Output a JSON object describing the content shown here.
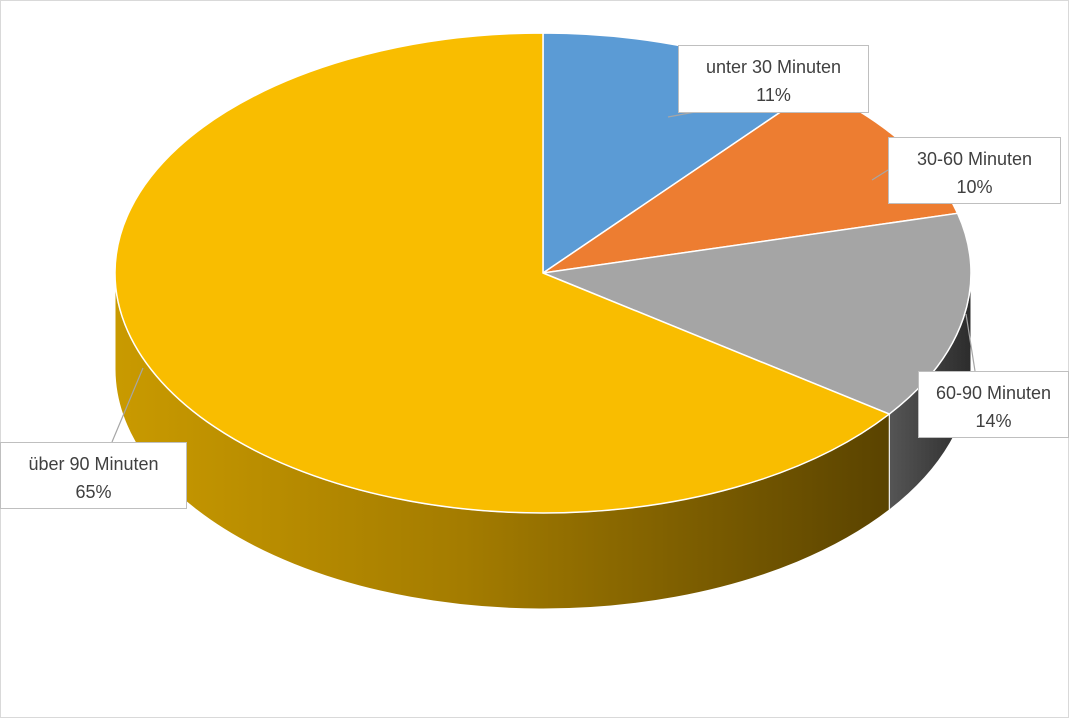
{
  "chart_data": {
    "type": "pie",
    "title": "",
    "style": "3d",
    "slices": [
      {
        "label": "unter 30 Minuten",
        "value": 11,
        "value_label": "11%",
        "color": "#5b9bd5",
        "side_color": "#3f6e99"
      },
      {
        "label": "30-60 Minuten",
        "value": 10,
        "value_label": "10%",
        "color": "#ed7d31",
        "side_color": "#a85820"
      },
      {
        "label": "60-90 Minuten",
        "value": 14,
        "value_label": "14%",
        "color": "#a5a5a5",
        "side_color": "#4a4a4a"
      },
      {
        "label": "über 90 Minuten",
        "value": 65,
        "value_label": "65%",
        "color": "#f9bd00",
        "side_color": "#c99500"
      }
    ],
    "legend": "none",
    "data_labels": "callout"
  }
}
